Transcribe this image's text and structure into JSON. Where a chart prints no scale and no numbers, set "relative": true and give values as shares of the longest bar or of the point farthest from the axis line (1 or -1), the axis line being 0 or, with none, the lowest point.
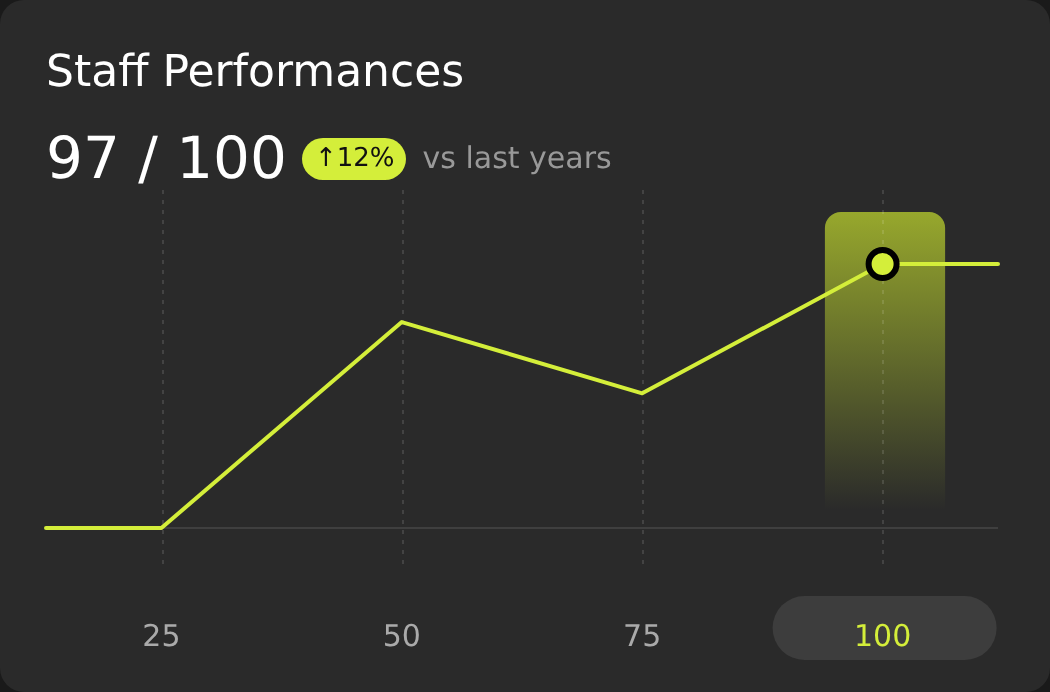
{
  "chart_data": {
    "type": "line",
    "title": "Staff Performances",
    "annotations": [
      "97 / 100",
      "↑12%",
      "vs last years"
    ],
    "x": [
      13,
      25,
      50,
      75,
      100,
      112
    ],
    "xlim": [
      13,
      112
    ],
    "xticks": [
      25,
      50,
      75,
      100
    ],
    "relative": true,
    "grid": "x",
    "legend": false,
    "series": [
      {
        "color": "#d4ee3a",
        "values": [
          0,
          0,
          0.78,
          0.51,
          1,
          1
        ],
        "marker": "none"
      },
      {
        "type": "scatter",
        "color": "#d4ee3a",
        "x": [
          100
        ],
        "values": [
          1
        ],
        "marker": "circle"
      }
    ],
    "bands": [
      {
        "axis": "x",
        "from": 94,
        "to": 106.5,
        "color": "#c8e02e"
      }
    ]
  }
}
